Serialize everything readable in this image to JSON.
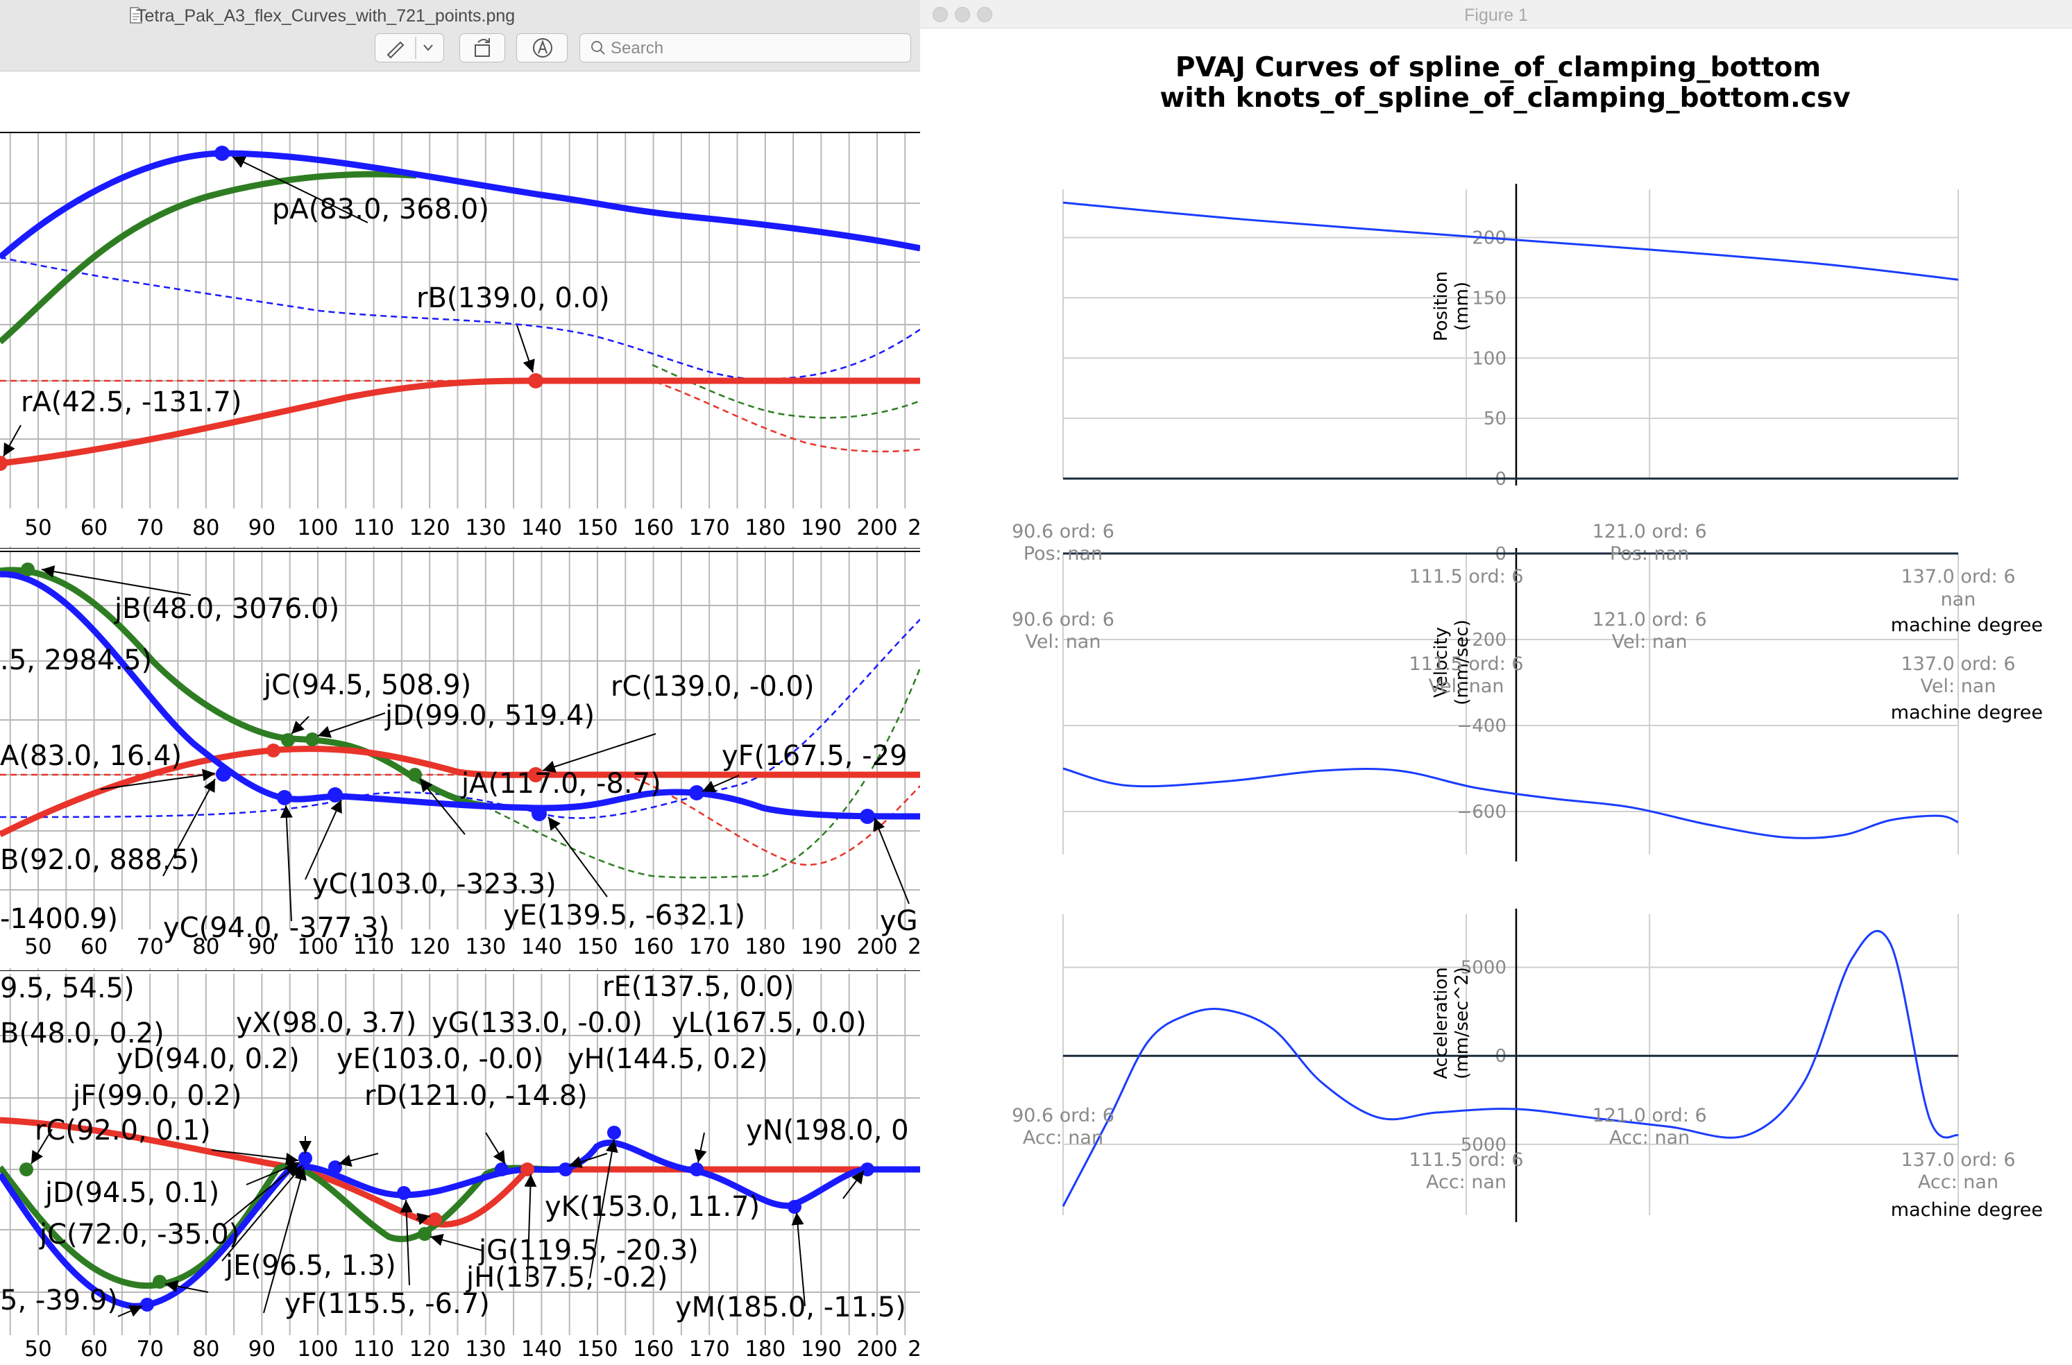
{
  "preview_window": {
    "title": "Tetra_Pak_A3_flex_Curves_with_721_points.png",
    "search_placeholder": "Search",
    "annotations_position": [
      "pA(83.0, 368.0)",
      "rB(139.0, 0.0)",
      "rA(42.5, -131.7)"
    ],
    "annotations_velocity": [
      "jB(48.0, 3076.0)",
      ".5, 2984.5)",
      "jC(94.5, 508.9)",
      "jD(99.0, 519.4)",
      "rC(139.0, -0.0)",
      "A(83.0, 16.4)",
      "jA(117.0, -8.7)",
      "yF(167.5, -29",
      "B(92.0, 888.5)",
      "yC(103.0, -323.3)",
      "yE(139.5, -632.1)",
      "-1400.9)",
      "yC(94.0, -377.3)",
      "yG(1"
    ],
    "annotations_acceleration": [
      "9.5, 54.5)",
      "rE(137.5, 0.0)",
      "yX(98.0, 3.7)",
      "yG(133.0, -0.0)",
      "yL(167.5, 0.0)",
      "B(48.0, 0.2)",
      "yD(94.0, 0.2)",
      "yE(103.0, -0.0)",
      "yH(144.5, 0.2)",
      "jF(99.0, 0.2)",
      "rD(121.0, -14.8)",
      "rC(92.0, 0.1)",
      "yN(198.0, 0",
      "jD(94.5, 0.1)",
      "yK(153.0, 11.7)",
      "jC(72.0, -35.0)",
      "jG(119.5, -20.3)",
      "jE(96.5, 1.3)",
      "jH(137.5, -0.2)",
      "5, -39.9)",
      "yF(115.5, -6.7)",
      "yM(185.0, -11.5)"
    ],
    "x_ticks": [
      "50",
      "60",
      "70",
      "80",
      "90",
      "100",
      "110",
      "120",
      "130",
      "140",
      "150",
      "160",
      "170",
      "180",
      "190",
      "200",
      "2"
    ],
    "colors": {
      "position": "#1a1aff",
      "velocity": "#2e7d22",
      "acceleration": "#e8342a"
    }
  },
  "figure_window": {
    "title": "Figure 1",
    "plot_title_line1": "PVAJ Curves of spline_of_clamping_bottom",
    "plot_title_line2": "with knots_of_spline_of_clamping_bottom.csv",
    "panels": [
      {
        "ylabel": "Position\n(mm)",
        "yticks": [
          "200",
          "150",
          "100",
          "50",
          "0"
        ],
        "notes": [
          "90.6 ord: 6",
          "Pos: nan",
          "121.0 ord: 6",
          "Pos: nan"
        ]
      },
      {
        "ylabel": "Velocity\n(mm/sec)",
        "yticks": [
          "0",
          "−200",
          "−400",
          "−600"
        ],
        "notes": [
          "111.5 ord: 6",
          "137.0 ord: 6",
          "nan",
          "machine degree",
          "90.6 ord: 6",
          "Vel: nan",
          "121.0 ord: 6",
          "Vel: nan",
          "111.5 ord: 6",
          "Vel: nan",
          "137.0 ord: 6",
          "Vel: nan",
          "machine degree"
        ]
      },
      {
        "ylabel": "Acceleration\n(mm/sec^2)",
        "yticks": [
          "5000",
          "0",
          "5000"
        ],
        "notes": [
          "90.6 ord: 6",
          "Acc: nan",
          "121.0 ord: 6",
          "Acc: nan",
          "111.5 ord: 6",
          "Acc: nan",
          "137.0 ord: 6",
          "Acc: nan",
          "machine degree"
        ]
      }
    ]
  },
  "chart_data": [
    {
      "type": "line",
      "title": "PVAJ Curves of spline_of_clamping_bottom with knots_of_spline_of_clamping_bottom.csv",
      "ylabel": "Position (mm)",
      "ylim": [
        0,
        240
      ],
      "grid": true,
      "x": [
        90.6,
        100,
        111.5,
        121,
        130,
        137
      ],
      "series": [
        {
          "values": [
            229,
            215,
            201,
            190,
            178,
            165
          ]
        }
      ]
    },
    {
      "type": "line",
      "ylabel": "Velocity (mm/sec)",
      "ylim": [
        -700,
        0
      ],
      "grid": true,
      "x": [
        90.6,
        94,
        99,
        104,
        108,
        112,
        116,
        120,
        124,
        128,
        131,
        133.5,
        136,
        137
      ],
      "series": [
        {
          "values": [
            -500,
            -540,
            -530,
            -505,
            -505,
            -545,
            -570,
            -590,
            -630,
            -660,
            -655,
            -620,
            -610,
            -625
          ]
        }
      ]
    },
    {
      "type": "line",
      "ylabel": "Acceleration (mm/sec^2)",
      "ylim": [
        -9000,
        8000
      ],
      "grid": true,
      "x": [
        90.6,
        93,
        95,
        97,
        99,
        101.5,
        104,
        107,
        110,
        114,
        118,
        122,
        126,
        129,
        131.5,
        133.5,
        135.5,
        137
      ],
      "series": [
        {
          "values": [
            -8500,
            -3500,
            800,
            2300,
            2600,
            1500,
            -1500,
            -3500,
            -3200,
            -3000,
            -3500,
            -4000,
            -4500,
            -1500,
            5500,
            6300,
            -3500,
            -4500
          ]
        }
      ]
    }
  ]
}
